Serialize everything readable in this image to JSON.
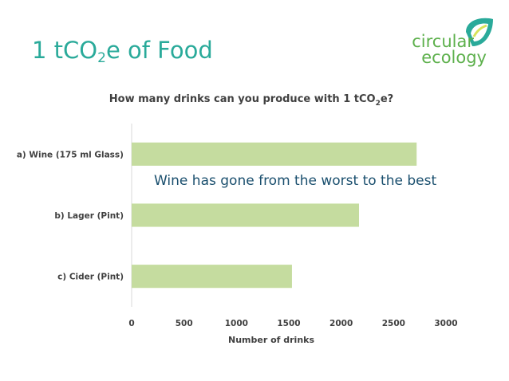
{
  "slide": {
    "title_main": "1 tCO",
    "title_sub": "2",
    "title_tail": "e of Food"
  },
  "logo": {
    "word1": "circular",
    "word2": "ecology",
    "color": "#5db04c",
    "accent": "#2aaa9a"
  },
  "chart_data": {
    "type": "bar",
    "orientation": "horizontal",
    "title_parts": [
      "How many drinks can you produce with  1 tCO",
      "2",
      "e?"
    ],
    "xlabel": "Number of drinks",
    "ylabel": "",
    "categories": [
      "a) Wine (175 ml Glass)",
      "b) Lager (Pint)",
      "c) Cider (Pint)"
    ],
    "values": [
      2720,
      2170,
      1530
    ],
    "xlim": [
      0,
      3000
    ],
    "xticks": [
      "0",
      "500",
      "1000",
      "1500",
      "2000",
      "2500",
      "3000"
    ],
    "grid": false,
    "bar_color": "#c5dc9f",
    "annotation": "Wine has gone from the worst to the best"
  }
}
